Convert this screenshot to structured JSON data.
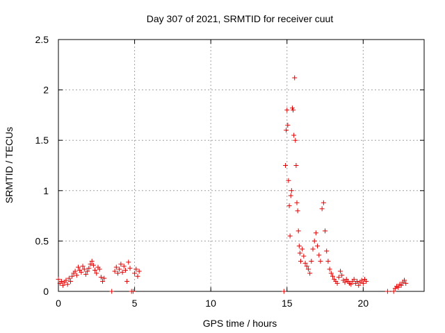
{
  "chart_data": {
    "type": "scatter",
    "title": "Day 307 of 2021, SRMTID for receiver cuut",
    "xlabel": "GPS time / hours",
    "ylabel": "SRMTID / TECUs",
    "xlim": [
      0,
      24
    ],
    "ylim": [
      0,
      2.5
    ],
    "grid": true,
    "xticks": [
      0,
      5,
      10,
      15,
      20
    ],
    "xtick_labels": [
      "0",
      "5",
      "10",
      "15",
      "20"
    ],
    "yticks": [
      0,
      0.5,
      1,
      1.5,
      2,
      2.5
    ],
    "ytick_labels": [
      "0",
      "0.5",
      "1",
      "1.5",
      "2",
      "2.5"
    ],
    "marker": "+",
    "color": "#e00000",
    "series": [
      {
        "name": "SRMTID",
        "points": [
          [
            0.0,
            0.12
          ],
          [
            0.1,
            0.08
          ],
          [
            0.2,
            0.1
          ],
          [
            0.3,
            0.06
          ],
          [
            0.4,
            0.09
          ],
          [
            0.5,
            0.11
          ],
          [
            0.6,
            0.07
          ],
          [
            0.7,
            0.13
          ],
          [
            0.8,
            0.1
          ],
          [
            0.9,
            0.15
          ],
          [
            1.0,
            0.18
          ],
          [
            1.1,
            0.2
          ],
          [
            1.2,
            0.16
          ],
          [
            1.3,
            0.24
          ],
          [
            1.4,
            0.21
          ],
          [
            1.5,
            0.19
          ],
          [
            1.6,
            0.25
          ],
          [
            1.7,
            0.22
          ],
          [
            1.8,
            0.17
          ],
          [
            1.9,
            0.2
          ],
          [
            2.0,
            0.23
          ],
          [
            2.1,
            0.27
          ],
          [
            2.2,
            0.3
          ],
          [
            2.3,
            0.26
          ],
          [
            2.4,
            0.21
          ],
          [
            2.5,
            0.18
          ],
          [
            2.6,
            0.24
          ],
          [
            2.7,
            0.22
          ],
          [
            2.8,
            0.14
          ],
          [
            2.9,
            0.1
          ],
          [
            3.0,
            0.13
          ],
          [
            3.5,
            0.0
          ],
          [
            3.7,
            0.2
          ],
          [
            3.8,
            0.24
          ],
          [
            3.9,
            0.18
          ],
          [
            4.0,
            0.22
          ],
          [
            4.1,
            0.27
          ],
          [
            4.2,
            0.19
          ],
          [
            4.3,
            0.25
          ],
          [
            4.4,
            0.21
          ],
          [
            4.5,
            0.1
          ],
          [
            4.6,
            0.29
          ],
          [
            4.7,
            0.23
          ],
          [
            4.8,
            0.0
          ],
          [
            4.9,
            0.0
          ],
          [
            5.0,
            0.18
          ],
          [
            5.1,
            0.22
          ],
          [
            5.2,
            0.15
          ],
          [
            5.3,
            0.2
          ],
          [
            14.8,
            0.0
          ],
          [
            14.9,
            1.25
          ],
          [
            14.95,
            1.6
          ],
          [
            15.0,
            1.8
          ],
          [
            15.05,
            1.65
          ],
          [
            15.1,
            1.1
          ],
          [
            15.15,
            0.85
          ],
          [
            15.2,
            0.55
          ],
          [
            15.25,
            0.95
          ],
          [
            15.3,
            1.0
          ],
          [
            15.35,
            1.82
          ],
          [
            15.4,
            1.8
          ],
          [
            15.45,
            1.55
          ],
          [
            15.5,
            2.12
          ],
          [
            15.55,
            1.5
          ],
          [
            15.6,
            1.25
          ],
          [
            15.65,
            0.88
          ],
          [
            15.7,
            0.8
          ],
          [
            15.75,
            0.6
          ],
          [
            15.8,
            0.45
          ],
          [
            15.85,
            0.38
          ],
          [
            15.9,
            0.3
          ],
          [
            16.0,
            0.42
          ],
          [
            16.1,
            0.35
          ],
          [
            16.2,
            0.28
          ],
          [
            16.3,
            0.25
          ],
          [
            16.4,
            0.22
          ],
          [
            16.5,
            0.18
          ],
          [
            16.6,
            0.3
          ],
          [
            16.7,
            0.42
          ],
          [
            16.8,
            0.5
          ],
          [
            16.9,
            0.58
          ],
          [
            17.0,
            0.45
          ],
          [
            17.1,
            0.36
          ],
          [
            17.2,
            0.3
          ],
          [
            17.3,
            0.82
          ],
          [
            17.4,
            0.88
          ],
          [
            17.5,
            0.6
          ],
          [
            17.6,
            0.4
          ],
          [
            17.7,
            0.3
          ],
          [
            17.8,
            0.22
          ],
          [
            17.9,
            0.18
          ],
          [
            18.0,
            0.15
          ],
          [
            18.1,
            0.12
          ],
          [
            18.2,
            0.1
          ],
          [
            18.3,
            0.08
          ],
          [
            18.4,
            0.14
          ],
          [
            18.5,
            0.2
          ],
          [
            18.6,
            0.16
          ],
          [
            18.7,
            0.11
          ],
          [
            18.8,
            0.09
          ],
          [
            18.9,
            0.12
          ],
          [
            19.0,
            0.1
          ],
          [
            19.1,
            0.08
          ],
          [
            19.2,
            0.07
          ],
          [
            19.3,
            0.1
          ],
          [
            19.4,
            0.12
          ],
          [
            19.5,
            0.08
          ],
          [
            19.6,
            0.1
          ],
          [
            19.7,
            0.06
          ],
          [
            19.8,
            0.09
          ],
          [
            19.9,
            0.11
          ],
          [
            20.0,
            0.08
          ],
          [
            20.1,
            0.12
          ],
          [
            20.2,
            0.1
          ],
          [
            21.6,
            0.0
          ],
          [
            22.0,
            0.0
          ],
          [
            22.1,
            0.03
          ],
          [
            22.2,
            0.05
          ],
          [
            22.3,
            0.04
          ],
          [
            22.4,
            0.07
          ],
          [
            22.5,
            0.06
          ],
          [
            22.6,
            0.09
          ],
          [
            22.7,
            0.11
          ],
          [
            22.8,
            0.08
          ]
        ]
      }
    ]
  }
}
